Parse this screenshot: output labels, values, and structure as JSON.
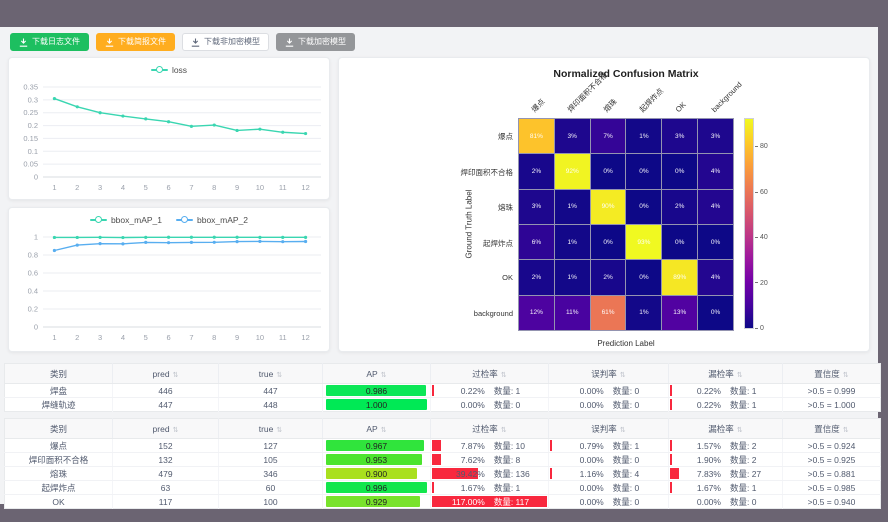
{
  "colors": {
    "accent_teal": "#3ad6b1",
    "accent_blue": "#58aef0",
    "bar_red": "#f8283e",
    "btn_green": "#1dbf60",
    "btn_orange": "#ffad1f",
    "btn_gray": "#949699",
    "ap_green": "#0ce757"
  },
  "toolbar": {
    "buttons": [
      {
        "name": "download-log-button",
        "label": "下载日志文件",
        "variant": "green"
      },
      {
        "name": "download-report-button",
        "label": "下载简报文件",
        "variant": "orange"
      },
      {
        "name": "download-unencrypted-model-button",
        "label": "下载非加密模型",
        "variant": "plain"
      },
      {
        "name": "download-encrypted-model-button",
        "label": "下载加密模型",
        "variant": "gray"
      }
    ]
  },
  "chart_data": [
    {
      "id": "loss",
      "type": "line",
      "title": "",
      "xlabel": "",
      "ylabel": "",
      "x": [
        "1",
        "2",
        "3",
        "4",
        "5",
        "6",
        "7",
        "8",
        "9",
        "10",
        "11",
        "12"
      ],
      "series": [
        {
          "name": "loss",
          "color": "#3ad6b1",
          "values": [
            0.305,
            0.273,
            0.25,
            0.237,
            0.226,
            0.215,
            0.197,
            0.202,
            0.181,
            0.186,
            0.174,
            0.169
          ]
        }
      ],
      "ylim": [
        0,
        0.35
      ],
      "yticks": [
        0,
        0.05,
        0.1,
        0.15,
        0.2,
        0.25,
        0.3,
        0.35
      ],
      "grid": true,
      "legend_position": "top"
    },
    {
      "id": "map",
      "type": "line",
      "title": "",
      "xlabel": "",
      "ylabel": "",
      "x": [
        "1",
        "2",
        "3",
        "4",
        "5",
        "6",
        "7",
        "8",
        "9",
        "10",
        "11",
        "12"
      ],
      "series": [
        {
          "name": "bbox_mAP_1",
          "color": "#3ad6b1",
          "values": [
            0.995,
            0.995,
            0.996,
            0.994,
            0.996,
            0.997,
            0.997,
            0.997,
            0.997,
            0.996,
            0.996,
            0.996
          ]
        },
        {
          "name": "bbox_mAP_2",
          "color": "#58aef0",
          "values": [
            0.85,
            0.91,
            0.926,
            0.924,
            0.94,
            0.937,
            0.94,
            0.941,
            0.949,
            0.951,
            0.948,
            0.95
          ]
        }
      ],
      "ylim": [
        0,
        1
      ],
      "yticks": [
        0,
        0.2,
        0.4,
        0.6,
        0.8,
        1
      ],
      "grid": true,
      "legend_position": "top"
    },
    {
      "id": "confusion_matrix",
      "type": "heatmap",
      "title": "Normalized Confusion Matrix",
      "xlabel": "Prediction Label",
      "ylabel": "Ground Truth Label",
      "categories": [
        "爆点",
        "焊印面积不合格",
        "熔珠",
        "起焊炸点",
        "OK",
        "background"
      ],
      "values_pct": [
        [
          81,
          3,
          7,
          1,
          3,
          3
        ],
        [
          2,
          92,
          0,
          0,
          0,
          4
        ],
        [
          3,
          1,
          90,
          0,
          2,
          4
        ],
        [
          6,
          1,
          0,
          93,
          0,
          0
        ],
        [
          2,
          1,
          2,
          0,
          89,
          4
        ],
        [
          12,
          11,
          61,
          1,
          13,
          0
        ]
      ],
      "colormap": "plasma",
      "vmax": 93,
      "colorbar": {
        "ticks": [
          0,
          20,
          40,
          60,
          80
        ]
      }
    }
  ],
  "tables": {
    "count_label": "数量",
    "headers": [
      {
        "name": "col-class",
        "label": "类别",
        "sortable": false
      },
      {
        "name": "col-pred",
        "label": "pred",
        "sortable": true
      },
      {
        "name": "col-true",
        "label": "true",
        "sortable": true
      },
      {
        "name": "col-ap",
        "label": "AP",
        "sortable": true
      },
      {
        "name": "col-over-rate",
        "label": "过检率",
        "sortable": true
      },
      {
        "name": "col-false-rate",
        "label": "误判率",
        "sortable": true
      },
      {
        "name": "col-miss-rate",
        "label": "漏检率",
        "sortable": true
      },
      {
        "name": "col-confidence",
        "label": "置信度",
        "sortable": true
      }
    ],
    "groups": [
      {
        "rows": [
          {
            "class": "焊盘",
            "pred": "446",
            "true": "447",
            "ap": 0.986,
            "ap_color": "#0ce757",
            "over": {
              "pct": 0.22,
              "count": 1
            },
            "mis": {
              "pct": 0.0,
              "count": 0
            },
            "miss": {
              "pct": 0.22,
              "count": 1
            },
            "conf": ">0.5 = 0.999"
          },
          {
            "class": "焊缝轨迹",
            "pred": "447",
            "true": "448",
            "ap": 1.0,
            "ap_color": "#00e955",
            "over": {
              "pct": 0.0,
              "count": 0
            },
            "mis": {
              "pct": 0.0,
              "count": 0
            },
            "miss": {
              "pct": 0.22,
              "count": 1
            },
            "conf": ">0.5 = 1.000"
          }
        ]
      },
      {
        "rows": [
          {
            "class": "爆点",
            "pred": "152",
            "true": "127",
            "ap": 0.967,
            "ap_color": "#30e43c",
            "over": {
              "pct": 7.87,
              "count": 10
            },
            "mis": {
              "pct": 0.79,
              "count": 1
            },
            "miss": {
              "pct": 1.57,
              "count": 2
            },
            "conf": ">0.5 = 0.924"
          },
          {
            "class": "焊印面积不合格",
            "pred": "132",
            "true": "105",
            "ap": 0.953,
            "ap_color": "#4ce42e",
            "over": {
              "pct": 7.62,
              "count": 8
            },
            "mis": {
              "pct": 0.0,
              "count": 0
            },
            "miss": {
              "pct": 1.9,
              "count": 2
            },
            "conf": ">0.5 = 0.925"
          },
          {
            "class": "熔珠",
            "pred": "479",
            "true": "346",
            "ap": 0.9,
            "ap_color": "#a9e01e",
            "over": {
              "pct": 39.42,
              "count": 136
            },
            "mis": {
              "pct": 1.16,
              "count": 4
            },
            "miss": {
              "pct": 7.83,
              "count": 27
            },
            "conf": ">0.5 = 0.881"
          },
          {
            "class": "起焊炸点",
            "pred": "63",
            "true": "60",
            "ap": 0.996,
            "ap_color": "#13e64d",
            "over": {
              "pct": 1.67,
              "count": 1
            },
            "mis": {
              "pct": 0.0,
              "count": 0
            },
            "miss": {
              "pct": 1.67,
              "count": 1
            },
            "conf": ">0.5 = 0.985"
          },
          {
            "class": "OK",
            "pred": "117",
            "true": "100",
            "ap": 0.929,
            "ap_color": "#79e22c",
            "over": {
              "pct": 117.0,
              "count": 117,
              "full": true
            },
            "mis": {
              "pct": 0.0,
              "count": 0
            },
            "miss": {
              "pct": 0.0,
              "count": 0
            },
            "conf": ">0.5 = 0.940"
          }
        ]
      }
    ]
  }
}
